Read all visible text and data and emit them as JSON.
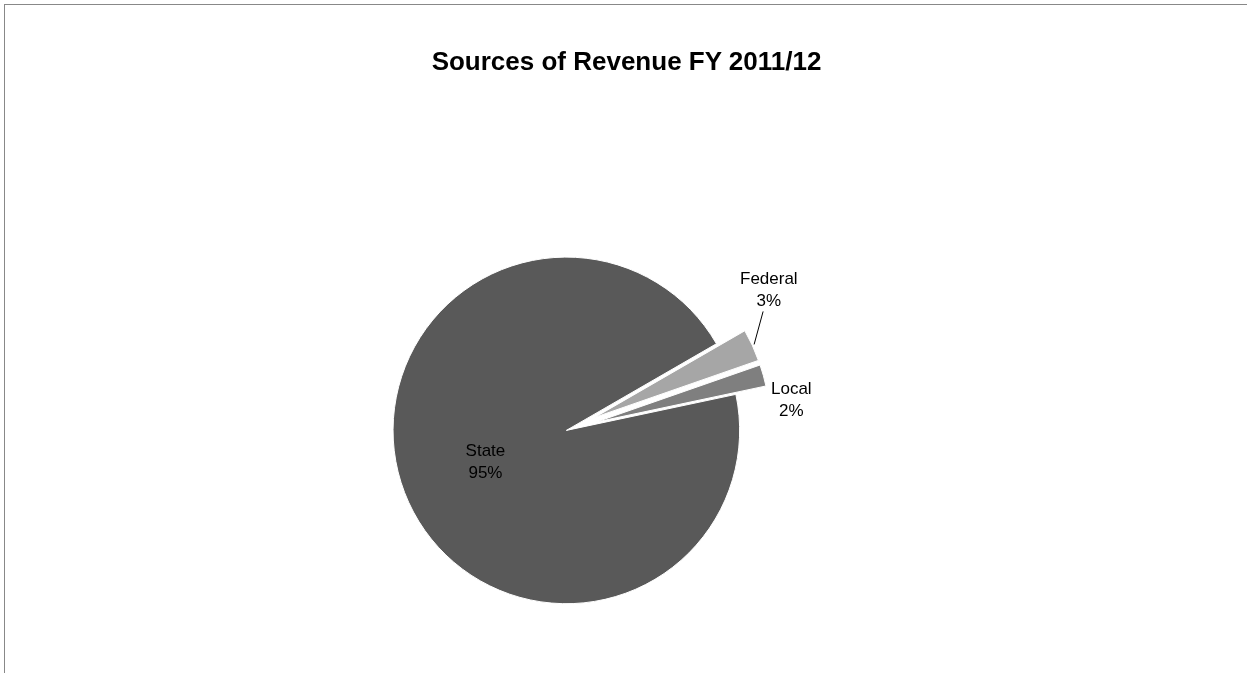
{
  "chart_data": {
    "type": "pie",
    "title": "Sources of Revenue FY 2011/12",
    "categories": [
      "State",
      "Federal",
      "Local"
    ],
    "values": [
      95,
      3,
      2
    ],
    "value_labels": [
      "95%",
      "3%",
      "2%"
    ],
    "colors": [
      "#595959",
      "#a6a6a6",
      "#7f7f7f"
    ],
    "legend": false
  }
}
